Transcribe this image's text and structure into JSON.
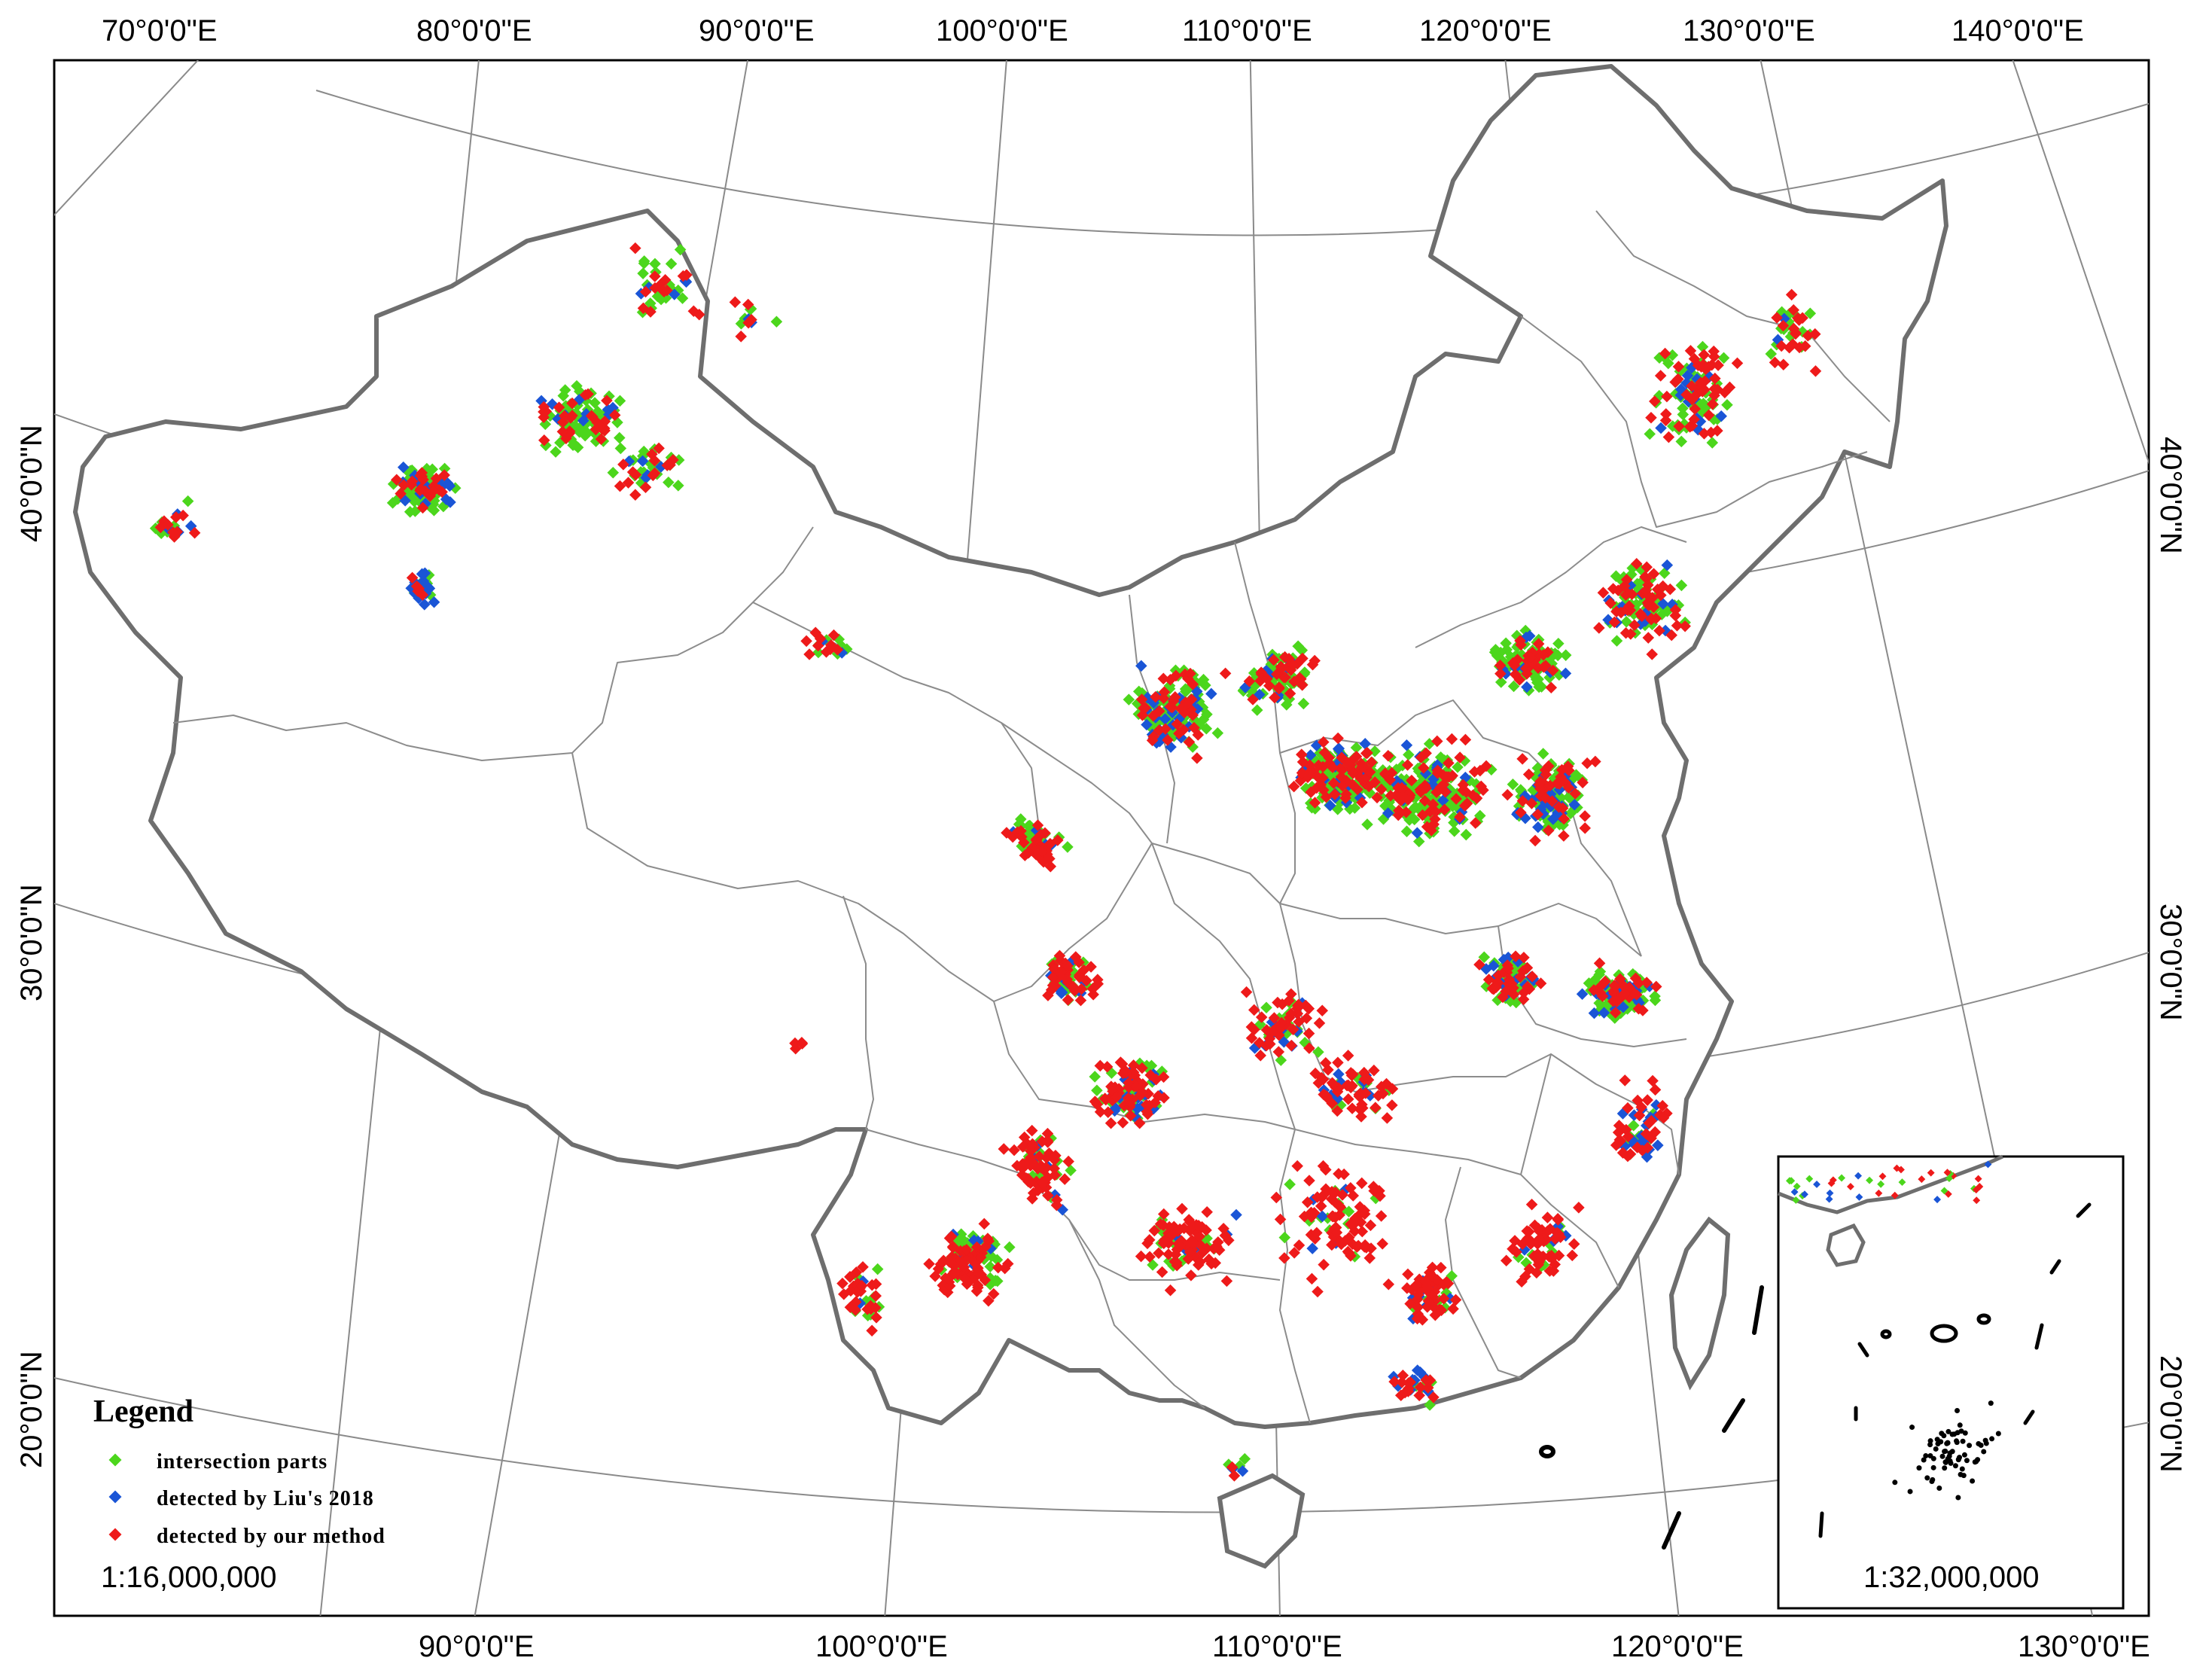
{
  "map": {
    "top_lon_labels": [
      "70°0'0\"E",
      "80°0'0\"E",
      "90°0'0\"E",
      "100°0'0\"E",
      "110°0'0\"E",
      "120°0'0\"E",
      "130°0'0\"E",
      "140°0'0\"E"
    ],
    "bottom_lon_labels": [
      "90°0'0\"E",
      "100°0'0\"E",
      "110°0'0\"E",
      "120°0'0\"E",
      "130°0'0\"E"
    ],
    "left_lat_labels": [
      "40°0'0\"N",
      "30°0'0\"N",
      "20°0'0\"N"
    ],
    "right_lat_labels": [
      "40°0'0\"N",
      "30°0'0\"N",
      "20°0'0\"N"
    ],
    "scale_main": "1:16,000,000",
    "scale_inset": "1:32,000,000",
    "colors": {
      "intersection": "#4cd61c",
      "liu2018": "#1a55d6",
      "ours": "#ee1a1a",
      "border": "#6e6e6e",
      "province": "#8c8c8c",
      "graticule": "#8a8a8a"
    }
  },
  "legend": {
    "title": "Legend",
    "items": [
      {
        "label": "intersection parts",
        "color": "#4cd61c"
      },
      {
        "label": "detected by Liu's 2018",
        "color": "#1a55d6"
      },
      {
        "label": "detected by our method",
        "color": "#ee1a1a"
      }
    ]
  }
}
